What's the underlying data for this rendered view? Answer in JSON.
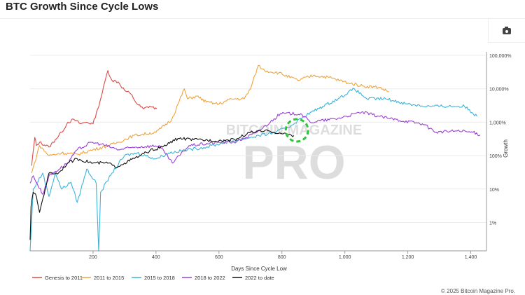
{
  "header": {
    "title": "BTC Growth Since Cycle Lows",
    "camera_icon": "camera-icon"
  },
  "watermark": {
    "line1": "BITCOIN MAGAZINE",
    "line2": "PRO"
  },
  "footer": {
    "copyright": "© 2025 Bitcoin Magazine Pro."
  },
  "chart_data": {
    "type": "line",
    "title": "BTC Growth Since Cycle Lows",
    "xlabel": "Days Since Cycle Low",
    "ylabel": "Growth",
    "xlim": [
      0,
      1450
    ],
    "ylim": [
      0.14,
      100000
    ],
    "yscale": "log",
    "x_ticks": [
      200,
      400,
      600,
      800,
      1000,
      1200,
      1400
    ],
    "x_tick_labels": [
      "200",
      "400",
      "600",
      "800",
      "1,000",
      "1,200",
      "1,400"
    ],
    "y_ticks": [
      1,
      10,
      100,
      1000,
      10000,
      100000
    ],
    "y_tick_labels": [
      "1%",
      "10%",
      "100%",
      "1,000%",
      "10,000%",
      "100,000%"
    ],
    "grid": "horizontal",
    "legend": "bottom",
    "highlight": {
      "type": "dashed-circle",
      "color": "#2ec43a",
      "x": 850,
      "y": 600
    },
    "series": [
      {
        "name": "Genesis to 2011",
        "color": "#dc4b45",
        "points": [
          [
            5,
            50
          ],
          [
            15,
            350
          ],
          [
            20,
            200
          ],
          [
            30,
            250
          ],
          [
            60,
            180
          ],
          [
            80,
            300
          ],
          [
            100,
            500
          ],
          [
            120,
            1000
          ],
          [
            140,
            1200
          ],
          [
            160,
            900
          ],
          [
            180,
            1000
          ],
          [
            200,
            900
          ],
          [
            215,
            2500
          ],
          [
            230,
            8000
          ],
          [
            240,
            20000
          ],
          [
            247,
            35000
          ],
          [
            260,
            18000
          ],
          [
            280,
            16000
          ],
          [
            300,
            9000
          ],
          [
            320,
            7000
          ],
          [
            340,
            3500
          ],
          [
            360,
            2500
          ],
          [
            380,
            3000
          ],
          [
            403,
            2500
          ]
        ]
      },
      {
        "name": "2011 to 2015",
        "color": "#f0a33a",
        "points": [
          [
            5,
            30
          ],
          [
            30,
            200
          ],
          [
            60,
            100
          ],
          [
            100,
            120
          ],
          [
            150,
            110
          ],
          [
            200,
            150
          ],
          [
            250,
            200
          ],
          [
            280,
            250
          ],
          [
            330,
            400
          ],
          [
            400,
            500
          ],
          [
            450,
            1200
          ],
          [
            490,
            10000
          ],
          [
            500,
            5000
          ],
          [
            530,
            6000
          ],
          [
            560,
            4000
          ],
          [
            600,
            3500
          ],
          [
            640,
            5000
          ],
          [
            680,
            5000
          ],
          [
            700,
            10000
          ],
          [
            725,
            50000
          ],
          [
            745,
            35000
          ],
          [
            790,
            30000
          ],
          [
            850,
            18000
          ],
          [
            900,
            25000
          ],
          [
            950,
            22000
          ],
          [
            1010,
            15000
          ],
          [
            1060,
            12000
          ],
          [
            1110,
            11000
          ],
          [
            1140,
            8000
          ]
        ]
      },
      {
        "name": "2015 to 2018",
        "color": "#3ab4d9",
        "points": [
          [
            0,
            0.14
          ],
          [
            10,
            10
          ],
          [
            40,
            30
          ],
          [
            60,
            6
          ],
          [
            80,
            30
          ],
          [
            100,
            10
          ],
          [
            130,
            16
          ],
          [
            150,
            4
          ],
          [
            180,
            40
          ],
          [
            210,
            15
          ],
          [
            218,
            0.14
          ],
          [
            224,
            8
          ],
          [
            260,
            30
          ],
          [
            300,
            100
          ],
          [
            340,
            120
          ],
          [
            400,
            80
          ],
          [
            440,
            120
          ],
          [
            500,
            150
          ],
          [
            560,
            180
          ],
          [
            620,
            250
          ],
          [
            700,
            350
          ],
          [
            780,
            500
          ],
          [
            830,
            800
          ],
          [
            870,
            1500
          ],
          [
            930,
            3000
          ],
          [
            978,
            5000
          ],
          [
            1030,
            10000
          ],
          [
            1070,
            5000
          ],
          [
            1130,
            5000
          ],
          [
            1200,
            3500
          ],
          [
            1260,
            3000
          ],
          [
            1330,
            3000
          ],
          [
            1380,
            3000
          ],
          [
            1420,
            1500
          ]
        ]
      },
      {
        "name": "2018 to 2022",
        "color": "#9b3fd6",
        "points": [
          [
            0,
            15
          ],
          [
            10,
            25
          ],
          [
            40,
            7
          ],
          [
            60,
            25
          ],
          [
            119,
            60
          ],
          [
            150,
            150
          ],
          [
            195,
            250
          ],
          [
            227,
            220
          ],
          [
            281,
            150
          ],
          [
            334,
            180
          ],
          [
            410,
            200
          ],
          [
            452,
            60
          ],
          [
            505,
            200
          ],
          [
            602,
            250
          ],
          [
            656,
            260
          ],
          [
            720,
            500
          ],
          [
            763,
            1000
          ],
          [
            795,
            1800
          ],
          [
            860,
            1800
          ],
          [
            890,
            1000
          ],
          [
            978,
            1300
          ],
          [
            1053,
            2000
          ],
          [
            1139,
            1300
          ],
          [
            1246,
            900
          ],
          [
            1290,
            500
          ],
          [
            1353,
            550
          ],
          [
            1407,
            500
          ],
          [
            1430,
            420
          ]
        ]
      },
      {
        "name": "2022 to date",
        "color": "#111111",
        "points": [
          [
            0,
            0.3
          ],
          [
            3,
            3
          ],
          [
            10,
            8
          ],
          [
            20,
            6
          ],
          [
            30,
            2
          ],
          [
            40,
            5
          ],
          [
            60,
            30
          ],
          [
            90,
            30
          ],
          [
            119,
            60
          ],
          [
            150,
            80
          ],
          [
            200,
            60
          ],
          [
            250,
            60
          ],
          [
            270,
            45
          ],
          [
            300,
            60
          ],
          [
            350,
            100
          ],
          [
            380,
            140
          ],
          [
            420,
            180
          ],
          [
            470,
            330
          ],
          [
            520,
            300
          ],
          [
            600,
            280
          ],
          [
            650,
            300
          ],
          [
            700,
            500
          ],
          [
            760,
            550
          ],
          [
            800,
            450
          ],
          [
            838,
            400
          ]
        ]
      }
    ]
  }
}
